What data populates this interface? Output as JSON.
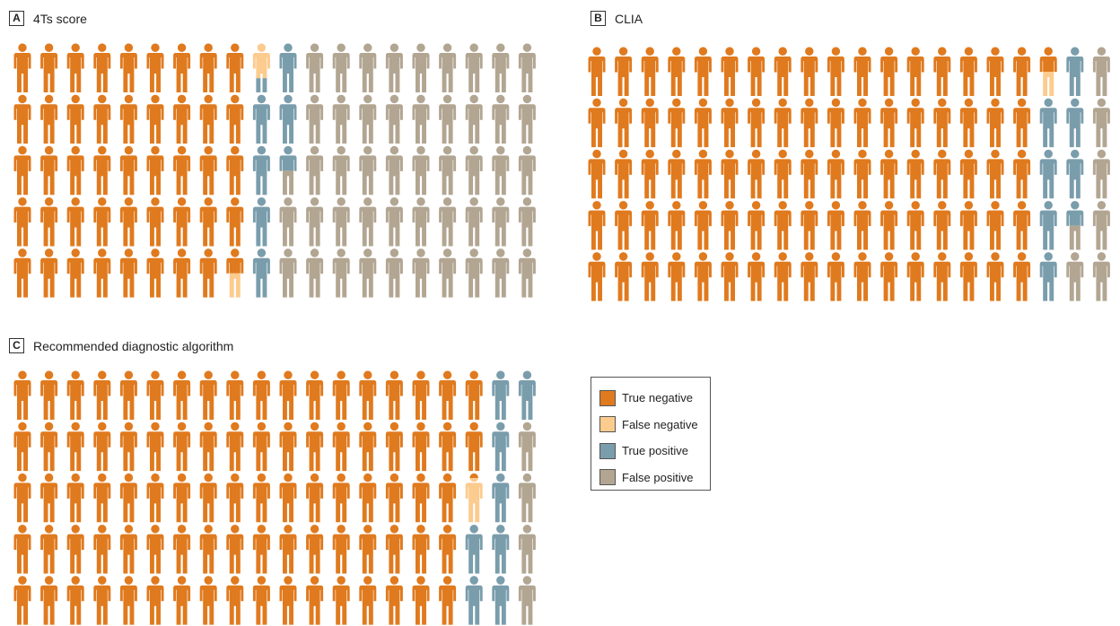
{
  "colors": {
    "true_negative": "#E07A1E",
    "false_negative": "#FCCB8E",
    "true_positive": "#7A9DAC",
    "false_positive": "#B2A692"
  },
  "legend": [
    {
      "key": "true_negative",
      "label": "True negative"
    },
    {
      "key": "false_negative",
      "label": "False negative"
    },
    {
      "key": "true_positive",
      "label": "True positive"
    },
    {
      "key": "false_positive",
      "label": "False positive"
    }
  ],
  "chart_data": [
    {
      "type": "pictograph",
      "panel": "A",
      "title": "4Ts score",
      "rows": 5,
      "cols": 20,
      "fill_order": "column-major",
      "counts": {
        "true_negative": 44.5,
        "false_negative": 1.2,
        "true_positive": 6.8,
        "false_positive": 47.5
      }
    },
    {
      "type": "pictograph",
      "panel": "B",
      "title": "CLIA",
      "rows": 5,
      "cols": 20,
      "fill_order": "column-major",
      "counts": {
        "true_negative": 85.5,
        "false_negative": 0.5,
        "true_positive": 7.5,
        "false_positive": 6.5
      }
    },
    {
      "type": "pictograph",
      "panel": "C",
      "title": "Recommended diagnostic algorithm",
      "rows": 5,
      "cols": 20,
      "fill_order": "column-major",
      "counts": {
        "true_negative": 87.1,
        "false_negative": 0.9,
        "true_positive": 8,
        "false_positive": 4
      }
    }
  ]
}
